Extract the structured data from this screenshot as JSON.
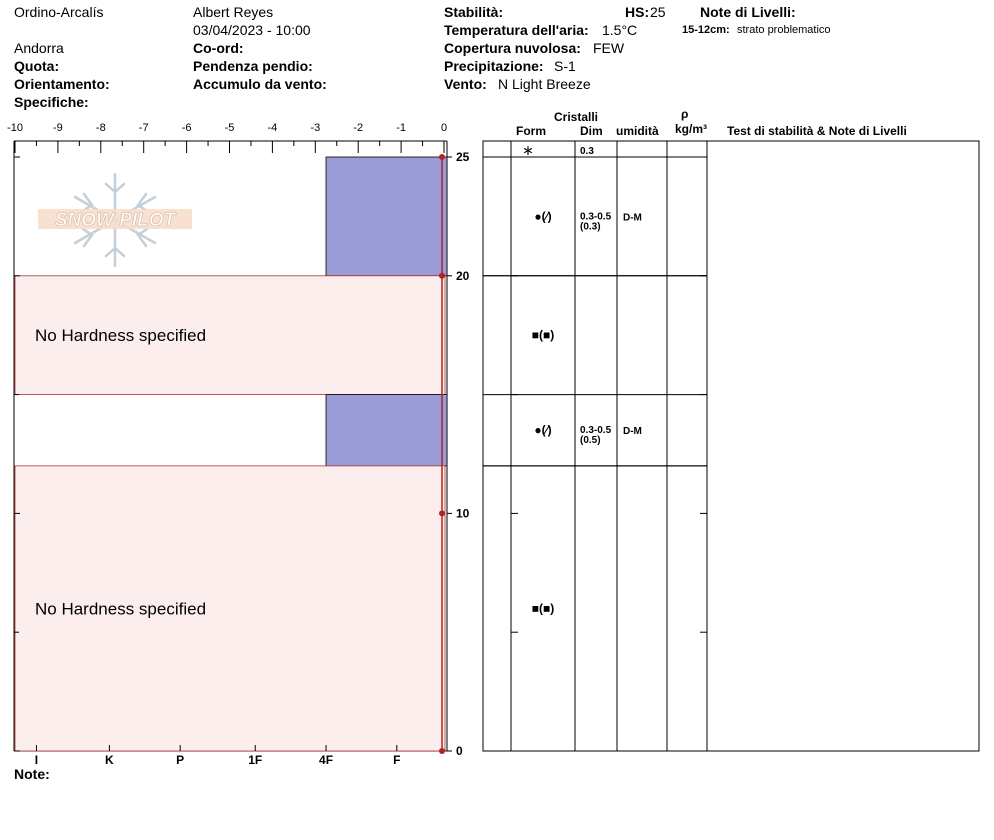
{
  "header": {
    "location": "Ordino-Arcalís",
    "country": "Andorra",
    "observer": "Albert Reyes",
    "datetime": "03/04/2023 - 10:00",
    "quota_label": "Quota:",
    "orient_label": "Orientamento:",
    "spec_label": "Specifiche:",
    "coord_label": "Co-ord:",
    "slope_label": "Pendenza pendio:",
    "wind_load_label": "Accumulo da vento:",
    "stability_label": "Stabilità:",
    "hs_label": "HS:",
    "hs_value": "25",
    "air_temp_label": "Temperatura dell'aria:",
    "air_temp_value": "1.5°C",
    "cloud_label": "Copertura nuvolosa:",
    "cloud_value": "FEW",
    "precip_label": "Precipitazione:",
    "precip_value": "S-1",
    "wind_label": "Vento:",
    "wind_value": "N Light Breeze",
    "layer_notes_label": "Note di Livelli:",
    "layer_note_range": "15-12cm:",
    "layer_note_text": "strato problematico",
    "notes_label": "Note:",
    "logo_text": "SNOW PILOT"
  },
  "table_headers": {
    "crystals": "Cristalli",
    "form": "Form",
    "dim": "Dim",
    "humidity": "umidità",
    "rho": "ρ",
    "density_unit": "kg/m³",
    "tests": "Test di stabilità & Note di Livelli"
  },
  "chart_data": {
    "type": "bar",
    "orientation": "horizontal",
    "temperature_axis": {
      "ticks": [
        -10,
        -9,
        -8,
        -7,
        -6,
        -5,
        -4,
        -3,
        -2,
        -1,
        0
      ],
      "tick_labels": [
        "-10",
        "-9",
        "-8",
        "-7",
        "-6",
        "-5",
        "-4",
        "-3",
        "-2",
        "-1",
        "0"
      ],
      "range": [
        -10,
        0
      ]
    },
    "depth_axis": {
      "range": [
        0,
        25
      ],
      "labels": [
        "0",
        "10",
        "20",
        "25"
      ],
      "label_values": [
        0,
        10,
        20,
        25
      ],
      "minor_ticks": [
        5,
        15
      ]
    },
    "hardness_axis": {
      "labels": [
        "I",
        "K",
        "P",
        "1F",
        "4F",
        "F"
      ],
      "label_positions_temp": [
        -9.5,
        -7.8,
        -6.15,
        -4.4,
        -2.75,
        -1.1
      ]
    },
    "temperature_profile": [
      {
        "depth": 25,
        "temp": 0
      },
      {
        "depth": 20,
        "temp": 0
      },
      {
        "depth": 10,
        "temp": 0
      },
      {
        "depth": 0,
        "temp": 0
      }
    ],
    "layers": [
      {
        "top": 25,
        "bottom": 20,
        "hardness": "4F",
        "hardness_temp": -2.75,
        "form": "●(⁄)",
        "size": "0.3-0.5",
        "size_avg": "(0.3)",
        "wetness": "D-M",
        "no_hardness_text": ""
      },
      {
        "top": 20,
        "bottom": 15,
        "hardness": "",
        "hardness_temp": null,
        "form": "■(■)",
        "size": "",
        "size_avg": "",
        "wetness": "",
        "no_hardness_text": "No Hardness specified"
      },
      {
        "top": 15,
        "bottom": 12,
        "hardness": "4F",
        "hardness_temp": -2.75,
        "form": "●(⁄)",
        "size": "0.3-0.5",
        "size_avg": "(0.5)",
        "wetness": "D-M",
        "no_hardness_text": ""
      },
      {
        "top": 12,
        "bottom": 0,
        "hardness": "",
        "hardness_temp": null,
        "form": "■(■)",
        "size": "",
        "size_avg": "",
        "wetness": "",
        "no_hardness_text": "No Hardness specified"
      }
    ],
    "surface_row": {
      "form": "∗",
      "size": "0.3"
    },
    "colors": {
      "hardness_fill": "#9b9bd6",
      "no_hardness_fill": "#fdeeee",
      "temp_line": "#b22222"
    }
  }
}
